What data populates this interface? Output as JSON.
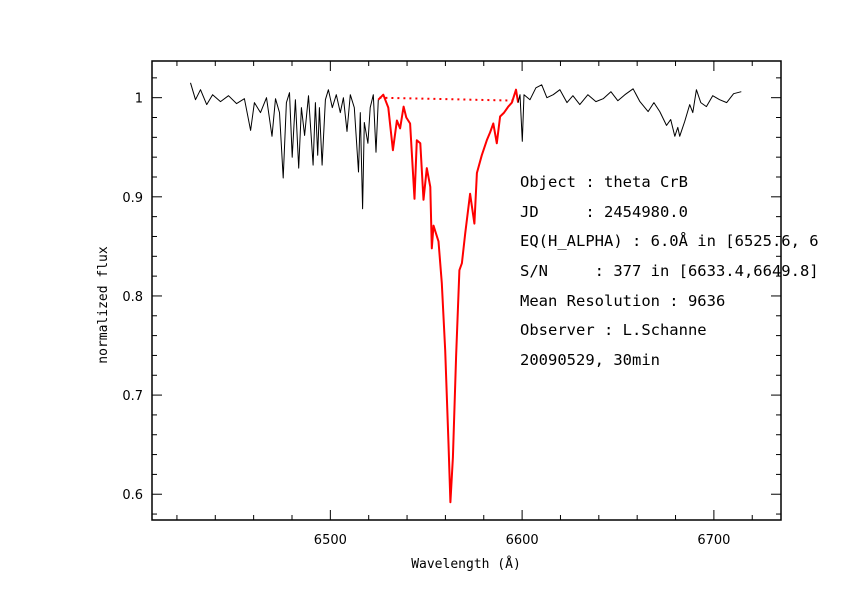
{
  "chart_data": {
    "type": "line",
    "xlabel": "Wavelength (Å)",
    "ylabel": "normalized flux",
    "xlim": [
      6407,
      6735
    ],
    "ylim": [
      0.574,
      1.037
    ],
    "xticks": [
      6500,
      6600,
      6700
    ],
    "xtick_labels": [
      "6500",
      "6600",
      "6700"
    ],
    "x_minor_step": 20,
    "yticks": [
      0.6,
      0.7,
      0.8,
      0.9,
      1.0
    ],
    "ytick_labels": [
      "0.6",
      "0.7",
      "0.8",
      "0.9",
      "1"
    ],
    "y_minor_step": 0.02,
    "grid": false,
    "series": [
      {
        "color": "#000000",
        "style": "solid",
        "x": [
          6427.1,
          6429.7,
          6432.3,
          6435.5,
          6438.6,
          6442.7,
          6446.9,
          6451.1,
          6455.2,
          6458.4,
          6460.4,
          6463.6,
          6466.7,
          6469.6,
          6471.4,
          6473.5,
          6475.4,
          6477.1,
          6478.7,
          6480.1,
          6481.8,
          6483.5,
          6484.9,
          6486.6,
          6488.6,
          6491.0,
          6492.2,
          6493.4,
          6494.3,
          6495.7,
          6497.4,
          6499.0,
          6501.0,
          6503.1,
          6505.2,
          6506.8,
          6508.7,
          6510.4,
          6512.5,
          6514.7,
          6515.6,
          6516.8,
          6517.7,
          6519.6,
          6520.8,
          6522.4,
          6523.8,
          6525.0
        ],
        "y": [
          1.015,
          0.998,
          1.008,
          0.993,
          1.003,
          0.996,
          1.002,
          0.994,
          0.999,
          0.967,
          0.995,
          0.985,
          1.0,
          0.961,
          0.999,
          0.985,
          0.919,
          0.995,
          1.005,
          0.94,
          0.998,
          0.929,
          0.99,
          0.962,
          1.002,
          0.932,
          0.995,
          0.942,
          0.99,
          0.932,
          0.998,
          1.008,
          0.99,
          1.003,
          0.985,
          1.0,
          0.966,
          1.003,
          0.99,
          0.925,
          0.985,
          0.888,
          0.975,
          0.954,
          0.99,
          1.003,
          0.945,
          0.998
        ]
      },
      {
        "color": "#ff0000",
        "style": "solid",
        "x": [
          6525.0,
          6527.6,
          6530.2,
          6532.6,
          6534.7,
          6536.4,
          6538.2,
          6539.6,
          6541.6,
          6543.9,
          6545.1,
          6546.9,
          6548.6,
          6550.3,
          6552.1,
          6552.9,
          6553.8,
          6556.4,
          6558.1,
          6559.9,
          6561.6,
          6562.6,
          6563.9,
          6565.6,
          6567.3,
          6568.6,
          6570.3,
          6572.9,
          6575.1,
          6576.4,
          6579.0,
          6581.6,
          6583.3,
          6585.0,
          6586.8,
          6588.5,
          6590.6,
          6592.8,
          6594.7,
          6596.8,
          6597.9
        ],
        "y": [
          0.998,
          1.003,
          0.99,
          0.947,
          0.977,
          0.969,
          0.991,
          0.98,
          0.974,
          0.898,
          0.957,
          0.954,
          0.897,
          0.929,
          0.91,
          0.848,
          0.871,
          0.855,
          0.813,
          0.745,
          0.651,
          0.592,
          0.637,
          0.739,
          0.826,
          0.833,
          0.863,
          0.903,
          0.873,
          0.924,
          0.942,
          0.957,
          0.965,
          0.974,
          0.954,
          0.981,
          0.985,
          0.991,
          0.995,
          1.008,
          0.995
        ]
      },
      {
        "color": "#000000",
        "style": "solid",
        "x": [
          6597.9,
          6598.9,
          6600.1,
          6601.0,
          6604.1,
          6607.2,
          6610.2,
          6612.9,
          6616.2,
          6619.7,
          6623.4,
          6626.5,
          6630.1,
          6634.3,
          6638.5,
          6642.3,
          6646.3,
          6649.9,
          6653.6,
          6657.9,
          6661.4,
          6665.7,
          6668.7,
          6671.8,
          6675.3,
          6677.5,
          6679.6,
          6681.2,
          6682.2,
          6684.8,
          6687.4,
          6689.0,
          6690.9,
          6693.2,
          6696.1,
          6699.4,
          6703.0,
          6706.7,
          6710.3,
          6714.3
        ],
        "y": [
          0.995,
          1.003,
          0.956,
          1.003,
          0.998,
          1.01,
          1.013,
          1.0,
          1.003,
          1.008,
          0.995,
          1.002,
          0.993,
          1.003,
          0.996,
          0.999,
          1.006,
          0.997,
          1.003,
          1.009,
          0.996,
          0.986,
          0.995,
          0.986,
          0.972,
          0.978,
          0.961,
          0.97,
          0.961,
          0.976,
          0.993,
          0.985,
          1.008,
          0.995,
          0.991,
          1.002,
          0.998,
          0.995,
          1.004,
          1.006
        ]
      },
      {
        "color": "#ff0000",
        "style": "dotted",
        "x": [
          6525.6,
          6597.9
        ],
        "y": [
          1.0,
          0.997
        ]
      }
    ],
    "annotations": [
      "Object : theta CrB",
      "JD     : 2454980.0",
      "EQ(H_ALPHA) : 6.0Å in [6525.6, 6",
      "S/N     : 377 in [6633.4,6649.8]",
      "Mean Resolution : 9636",
      "Observer : L.Schanne",
      "20090529, 30min"
    ]
  }
}
